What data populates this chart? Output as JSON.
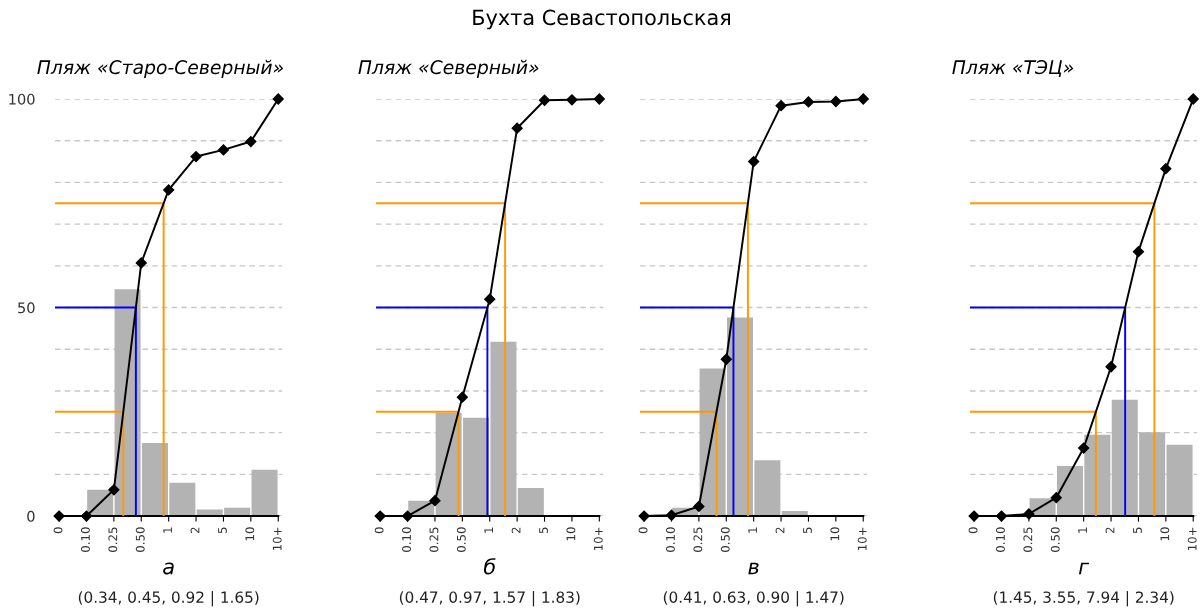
{
  "chart_data": [
    {
      "type": "bar",
      "title": "Пляж «Старо-Северный»",
      "xlabel": "а",
      "annotations": [
        "Бухта Севастопольская",
        "(0.34, 0.45, 0.92 | 1.65)"
      ],
      "categories": [
        "0",
        "0.10",
        "0.25",
        "0.50",
        "1",
        "2",
        "5",
        "10",
        "10+"
      ],
      "values": [
        0,
        6.3,
        54.4,
        17.5,
        8.0,
        1.6,
        2.0,
        11.1,
        null
      ],
      "color": "#b3b3b3",
      "ylim": [
        0,
        100
      ],
      "yticks": [
        0,
        {
          "value": 10,
          "label": null
        },
        {
          "value": 20,
          "label": null
        },
        {
          "value": 30,
          "label": null
        },
        {
          "value": 40,
          "label": null
        },
        50,
        {
          "value": 60,
          "label": null
        },
        {
          "value": 70,
          "label": null
        },
        {
          "value": 80,
          "label": null
        },
        {
          "value": 90,
          "label": null
        },
        100
      ],
      "grid": "y",
      "series": [
        {
          "type": "line",
          "color": "#000000",
          "marker": "diamond",
          "values": [
            0,
            0,
            6.3,
            60.7,
            78.2,
            86.2,
            87.8,
            89.8,
            100
          ]
        }
      ],
      "ref_lines": [
        {
          "axis": "y",
          "value": 25,
          "color": "#ff9900"
        },
        {
          "axis": "y",
          "value": 50,
          "color": "#0000ff"
        },
        {
          "axis": "y",
          "value": 75,
          "color": "#ff9900"
        }
      ]
    },
    {
      "type": "bar",
      "title": "Пляж «Северный»",
      "xlabel": "б",
      "annotations": [
        "(0.47, 0.97, 1.57 | 1.83)"
      ],
      "categories": [
        "0",
        "0.10",
        "0.25",
        "0.50",
        "1",
        "2",
        "5",
        "10",
        "10+"
      ],
      "values": [
        0,
        3.7,
        24.8,
        23.6,
        41.8,
        6.7,
        0,
        0,
        null
      ],
      "color": "#b3b3b3",
      "ylim": [
        0,
        100
      ],
      "yticks": [
        0,
        {
          "value": 10,
          "label": null
        },
        {
          "value": 20,
          "label": null
        },
        {
          "value": 30,
          "label": null
        },
        {
          "value": 40,
          "label": null
        },
        50,
        {
          "value": 60,
          "label": null
        },
        {
          "value": 70,
          "label": null
        },
        {
          "value": 80,
          "label": null
        },
        {
          "value": 90,
          "label": null
        },
        100
      ],
      "grid": "y",
      "tick_labels": "x",
      "series": [
        {
          "type": "line",
          "color": "#000000",
          "marker": "diamond",
          "values": [
            0,
            0,
            3.7,
            28.5,
            52.0,
            93.0,
            99.7,
            99.8,
            100
          ]
        }
      ],
      "ref_lines": [
        {
          "axis": "y",
          "value": 25,
          "color": "#ff9900"
        },
        {
          "axis": "y",
          "value": 50,
          "color": "#0000ff"
        },
        {
          "axis": "y",
          "value": 75,
          "color": "#ff9900"
        }
      ]
    },
    {
      "type": "bar",
      "xlabel": "в",
      "annotations": [
        "(0.41, 0.63, 0.90 | 1.47)"
      ],
      "categories": [
        "0",
        "0.10",
        "0.25",
        "0.50",
        "1",
        "2",
        "5",
        "10",
        "10+"
      ],
      "values": [
        0,
        2.0,
        35.4,
        47.6,
        13.4,
        1.2,
        0,
        0,
        null
      ],
      "color": "#b3b3b3",
      "ylim": [
        0,
        100
      ],
      "yticks": [
        0,
        {
          "value": 10,
          "label": null
        },
        {
          "value": 20,
          "label": null
        },
        {
          "value": 30,
          "label": null
        },
        {
          "value": 40,
          "label": null
        },
        50,
        {
          "value": 60,
          "label": null
        },
        {
          "value": 70,
          "label": null
        },
        {
          "value": 80,
          "label": null
        },
        {
          "value": 90,
          "label": null
        },
        100
      ],
      "grid": "y",
      "tick_labels": "x",
      "series": [
        {
          "type": "line",
          "color": "#000000",
          "marker": "diamond",
          "values": [
            0,
            0.2,
            2.3,
            37.6,
            85.0,
            98.4,
            99.3,
            99.4,
            100
          ]
        }
      ],
      "ref_lines": [
        {
          "axis": "y",
          "value": 25,
          "color": "#ff9900"
        },
        {
          "axis": "y",
          "value": 50,
          "color": "#0000ff"
        },
        {
          "axis": "y",
          "value": 75,
          "color": "#ff9900"
        }
      ]
    },
    {
      "type": "bar",
      "title": "Пляж «ТЭЦ»",
      "xlabel": "г",
      "annotations": [
        "(1.45, 3.55, 7.94 | 2.34)"
      ],
      "categories": [
        "0",
        "0.10",
        "0.25",
        "0.50",
        "1",
        "2",
        "5",
        "10",
        "10+"
      ],
      "values": [
        0,
        0,
        4.3,
        12.0,
        19.5,
        27.9,
        20.1,
        17.1,
        null
      ],
      "color": "#b3b3b3",
      "ylim": [
        0,
        100
      ],
      "yticks": [
        0,
        {
          "value": 10,
          "label": null
        },
        {
          "value": 20,
          "label": null
        },
        {
          "value": 30,
          "label": null
        },
        {
          "value": 40,
          "label": null
        },
        50,
        {
          "value": 60,
          "label": null
        },
        {
          "value": 70,
          "label": null
        },
        {
          "value": 80,
          "label": null
        },
        {
          "value": 90,
          "label": null
        },
        100
      ],
      "grid": "y",
      "tick_labels": "x",
      "series": [
        {
          "type": "line",
          "color": "#000000",
          "marker": "diamond",
          "values": [
            0,
            0,
            0.5,
            4.4,
            16.3,
            35.8,
            63.4,
            83.3,
            100
          ]
        }
      ],
      "ref_lines": [
        {
          "axis": "y",
          "value": 25,
          "color": "#ff9900"
        },
        {
          "axis": "y",
          "value": 50,
          "color": "#0000ff"
        },
        {
          "axis": "y",
          "value": 75,
          "color": "#ff9900"
        }
      ]
    }
  ]
}
